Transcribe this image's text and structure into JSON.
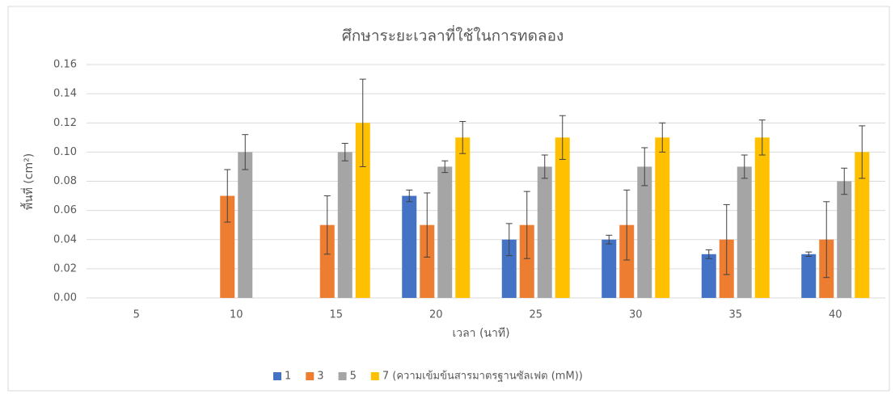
{
  "chart_data": {
    "type": "bar",
    "title": "ศึกษาระยะเวลาที่ใช้ในการทดลอง",
    "x_label": "เวลา (นาที)",
    "y_label": "พื้นที่ (cm²)",
    "categories": [
      "5",
      "10",
      "15",
      "20",
      "25",
      "30",
      "35",
      "40"
    ],
    "series": [
      {
        "name": "1",
        "color": "#4472c4",
        "values": [
          null,
          null,
          null,
          0.07,
          0.04,
          0.04,
          0.03,
          0.03
        ],
        "errors": [
          null,
          null,
          null,
          0.004,
          0.011,
          0.003,
          0.003,
          0.0015
        ]
      },
      {
        "name": "3",
        "color": "#ed7d31",
        "values": [
          null,
          0.07,
          0.05,
          0.05,
          0.05,
          0.05,
          0.04,
          0.04
        ],
        "errors": [
          null,
          0.018,
          0.02,
          0.022,
          0.023,
          0.024,
          0.024,
          0.026
        ]
      },
      {
        "name": "5",
        "color": "#a5a5a5",
        "values": [
          null,
          0.1,
          0.1,
          0.09,
          0.09,
          0.09,
          0.09,
          0.08
        ],
        "errors": [
          null,
          0.012,
          0.006,
          0.004,
          0.008,
          0.013,
          0.008,
          0.009
        ]
      },
      {
        "name": "7 (ความเข้มข้นสารมาตรฐานซัลเฟต (mM))",
        "color": "#ffc000",
        "values": [
          null,
          null,
          0.12,
          0.11,
          0.11,
          0.11,
          0.11,
          0.1
        ],
        "errors": [
          null,
          null,
          0.03,
          0.011,
          0.015,
          0.01,
          0.012,
          0.018
        ]
      }
    ],
    "ylim": [
      0,
      0.16
    ],
    "yticks": [
      {
        "value": 0,
        "label": "0.00"
      },
      {
        "value": 0.02,
        "label": "0.02"
      },
      {
        "value": 0.04,
        "label": "0.04"
      },
      {
        "value": 0.06,
        "label": "0.06"
      },
      {
        "value": 0.08,
        "label": "0.08"
      },
      {
        "value": 0.1,
        "label": "0.10"
      },
      {
        "value": 0.12,
        "label": "0.12"
      },
      {
        "value": 0.14,
        "label": "0.14"
      },
      {
        "value": 0.16,
        "label": "0.16"
      }
    ],
    "grid": true,
    "legend": "bottom"
  }
}
